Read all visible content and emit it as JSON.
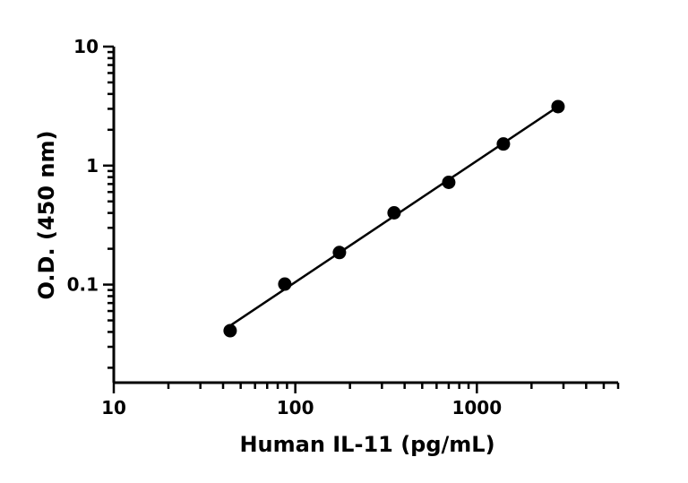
{
  "chart_data": {
    "type": "scatter",
    "title": "",
    "xlabel": "Human IL-11 (pg/mL)",
    "ylabel": "O.D. (450 nm)",
    "x_scale": "log",
    "y_scale": "log",
    "xlim": [
      10,
      6000
    ],
    "ylim": [
      0.015,
      10
    ],
    "x_ticks": [
      {
        "value": 10,
        "label": "10"
      },
      {
        "value": 100,
        "label": "100"
      },
      {
        "value": 1000,
        "label": "1000"
      }
    ],
    "y_ticks": [
      {
        "value": 0.1,
        "label": "0.1"
      },
      {
        "value": 1,
        "label": "1"
      },
      {
        "value": 10,
        "label": "10"
      }
    ],
    "grid": false,
    "legend": "none",
    "series": [
      {
        "x": [
          43.75,
          87.5,
          175,
          350,
          700,
          1400,
          2800
        ],
        "y": [
          0.041,
          0.101,
          0.186,
          0.401,
          0.723,
          1.52,
          3.13
        ],
        "marker": "circle",
        "color": "#000000",
        "fit_line": true
      }
    ]
  }
}
